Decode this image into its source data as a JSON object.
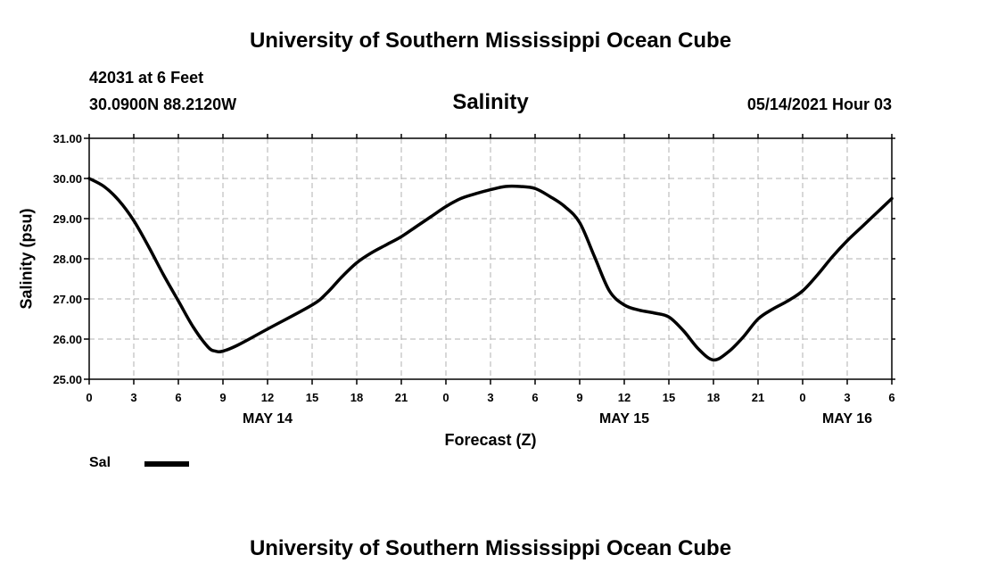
{
  "header": {
    "top_title": "University of Southern Mississippi Ocean Cube",
    "bottom_title": "University of Southern Mississippi Ocean Cube",
    "station": "42031 at 6 Feet",
    "coordinates": "30.0900N  88.2120W",
    "run_time": "05/14/2021 Hour 03"
  },
  "legend": {
    "label": "Sal",
    "color": "#000000"
  },
  "chart_data": {
    "type": "line",
    "title": "Salinity",
    "xlabel": "Forecast (Z)",
    "ylabel": "Salinity (psu)",
    "x_unit": "hours since May 14 00Z",
    "xlim": [
      0,
      54
    ],
    "ylim": [
      25.0,
      31.0
    ],
    "grid": true,
    "legend_position": "bottom-left",
    "y_ticks": [
      "25.00",
      "26.00",
      "27.00",
      "28.00",
      "29.00",
      "30.00",
      "31.00"
    ],
    "x_ticks": [
      {
        "x": 0,
        "label": "0"
      },
      {
        "x": 3,
        "label": "3"
      },
      {
        "x": 6,
        "label": "6"
      },
      {
        "x": 9,
        "label": "9"
      },
      {
        "x": 12,
        "label": "12"
      },
      {
        "x": 15,
        "label": "15"
      },
      {
        "x": 18,
        "label": "18"
      },
      {
        "x": 21,
        "label": "21"
      },
      {
        "x": 24,
        "label": "0"
      },
      {
        "x": 27,
        "label": "3"
      },
      {
        "x": 30,
        "label": "6"
      },
      {
        "x": 33,
        "label": "9"
      },
      {
        "x": 36,
        "label": "12"
      },
      {
        "x": 39,
        "label": "15"
      },
      {
        "x": 42,
        "label": "18"
      },
      {
        "x": 45,
        "label": "21"
      },
      {
        "x": 48,
        "label": "0"
      },
      {
        "x": 51,
        "label": "3"
      },
      {
        "x": 54,
        "label": "6"
      }
    ],
    "date_labels": [
      {
        "x": 12,
        "label": "MAY 14"
      },
      {
        "x": 36,
        "label": "MAY 15"
      },
      {
        "x": 51,
        "label": "MAY 16"
      }
    ],
    "series": [
      {
        "name": "Sal",
        "color": "#000000",
        "x": [
          0,
          1,
          2,
          3,
          4,
          5,
          6,
          7,
          8,
          8.5,
          9,
          10,
          12,
          15,
          16,
          17,
          18,
          19,
          20,
          21,
          22,
          23,
          24,
          25,
          26,
          27,
          28,
          29,
          30,
          31,
          32,
          33,
          34,
          35,
          36,
          37,
          38,
          39,
          40,
          41,
          42,
          43,
          44,
          45,
          46,
          47,
          48,
          49,
          50,
          51,
          52,
          53,
          54
        ],
        "y": [
          30.0,
          29.8,
          29.45,
          28.95,
          28.3,
          27.6,
          26.95,
          26.3,
          25.8,
          25.7,
          25.7,
          25.85,
          26.25,
          26.85,
          27.15,
          27.55,
          27.9,
          28.15,
          28.35,
          28.55,
          28.8,
          29.05,
          29.3,
          29.5,
          29.62,
          29.72,
          29.8,
          29.8,
          29.75,
          29.55,
          29.3,
          28.9,
          28.05,
          27.2,
          26.85,
          26.72,
          26.65,
          26.55,
          26.2,
          25.75,
          25.48,
          25.68,
          26.05,
          26.5,
          26.75,
          26.95,
          27.2,
          27.6,
          28.05,
          28.45,
          28.8,
          29.15,
          29.5
        ]
      }
    ]
  }
}
